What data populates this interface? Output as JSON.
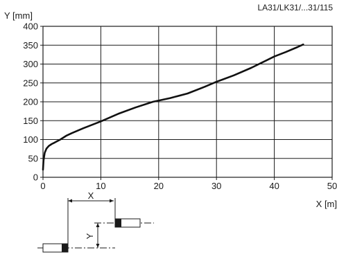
{
  "header": {
    "model": "LA31/LK31/...31/115"
  },
  "chart_data": {
    "type": "line",
    "ylabel": "Y [mm]",
    "xlabel": "X [m]",
    "xlim": [
      0,
      50
    ],
    "ylim": [
      0,
      400
    ],
    "x_ticks": [
      0,
      10,
      20,
      30,
      40,
      50
    ],
    "y_ticks": [
      0,
      50,
      100,
      150,
      200,
      250,
      300,
      350,
      400
    ],
    "grid": true,
    "series": [
      {
        "x": [
          0,
          0.1,
          0.3,
          0.6,
          1,
          1.5,
          2,
          3,
          4,
          5,
          7,
          10,
          13,
          16,
          19,
          22,
          25,
          28,
          30,
          33,
          36,
          38,
          40,
          42,
          44,
          45
        ],
        "y": [
          20,
          45,
          65,
          76,
          83,
          88,
          92,
          100,
          110,
          117,
          130,
          148,
          168,
          185,
          200,
          210,
          222,
          240,
          253,
          270,
          290,
          305,
          320,
          332,
          345,
          352
        ]
      }
    ]
  },
  "diagram": {
    "x_label": "X",
    "y_label": "Y"
  }
}
